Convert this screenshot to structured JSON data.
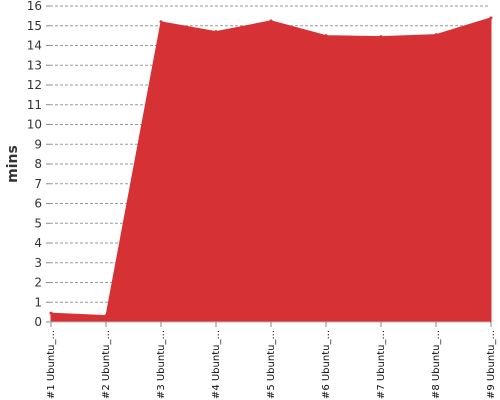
{
  "chart_data": {
    "type": "area",
    "title": "",
    "xlabel": "",
    "ylabel": "mins",
    "ylim": [
      0,
      16
    ],
    "y_ticks": [
      0,
      1,
      2,
      3,
      4,
      5,
      6,
      7,
      8,
      9,
      10,
      11,
      12,
      13,
      14,
      15,
      16
    ],
    "grid": true,
    "legend": "none",
    "colors": {
      "fill": "#d63235",
      "grid": "#9a9a9a"
    },
    "categories": [
      "#1 Ubuntu_...",
      "#2 Ubuntu_...",
      "#3 Ubuntu_...",
      "#4 Ubuntu_...",
      "#5 Ubuntu_...",
      "#6 Ubuntu_...",
      "#7 Ubuntu_...",
      "#8 Ubuntu_...",
      "#9 Ubuntu_..."
    ],
    "series": [
      {
        "values": [
          0.45,
          0.32,
          15.2,
          14.7,
          15.25,
          14.5,
          14.45,
          14.55,
          15.4
        ]
      }
    ]
  }
}
